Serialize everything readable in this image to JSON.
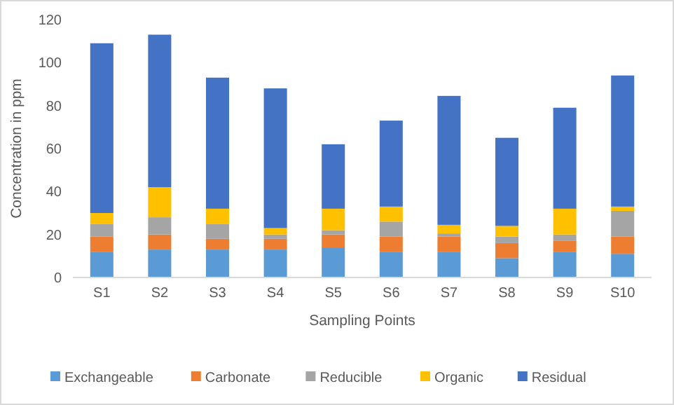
{
  "chart_data": {
    "type": "bar",
    "stacked": true,
    "xlabel": "Sampling Points",
    "ylabel": "Concentration in ppm",
    "categories": [
      "S1",
      "S2",
      "S3",
      "S4",
      "S5",
      "S6",
      "S7",
      "S8",
      "S9",
      "S10"
    ],
    "series": [
      {
        "name": "Exchangeable",
        "color": "#5b9bd5",
        "values": [
          12,
          13,
          13,
          13,
          14,
          12,
          12,
          9,
          12,
          11
        ]
      },
      {
        "name": "Carbonate",
        "color": "#ed7d31",
        "values": [
          7,
          7,
          5,
          5,
          6,
          7,
          7,
          7,
          5,
          8
        ]
      },
      {
        "name": "Reducible",
        "color": "#a5a5a5",
        "values": [
          6,
          8,
          7,
          2,
          2,
          7,
          1.5,
          3,
          3,
          12
        ]
      },
      {
        "name": "Organic",
        "color": "#ffc000",
        "values": [
          5,
          14,
          7,
          3,
          10,
          7,
          4,
          5,
          12,
          2
        ]
      },
      {
        "name": "Residual",
        "color": "#4472c4",
        "values": [
          79,
          71,
          61,
          65,
          30,
          40,
          60,
          41,
          47,
          61
        ]
      }
    ],
    "ylim": [
      0,
      120
    ],
    "yticks": [
      0,
      20,
      40,
      60,
      80,
      100,
      120
    ],
    "legend": "bottom"
  }
}
